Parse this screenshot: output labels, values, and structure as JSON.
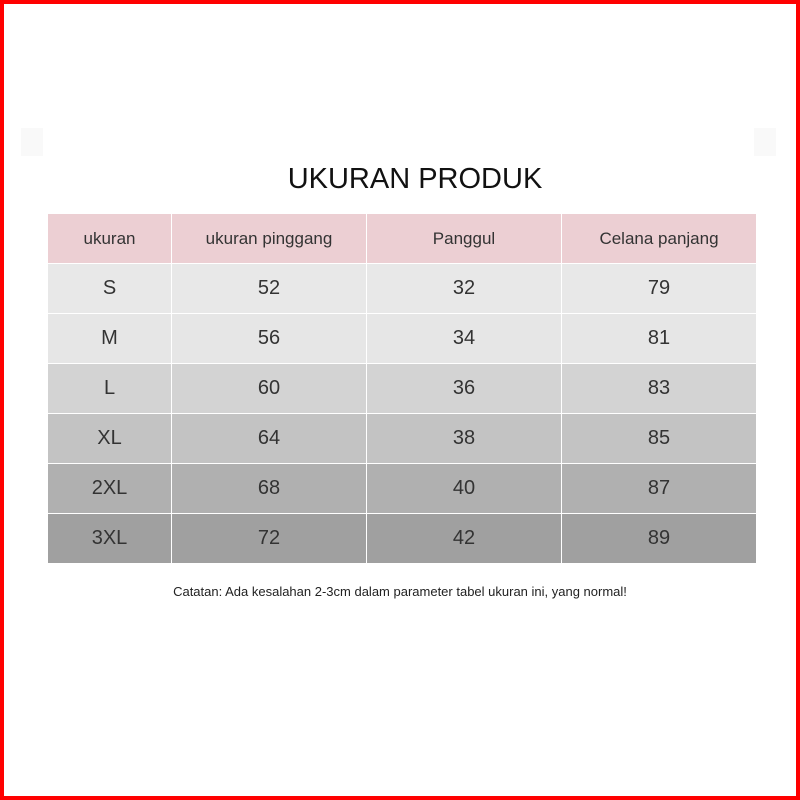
{
  "title": "UKURAN PRODUK",
  "headers": [
    "ukuran",
    "ukuran pinggang",
    "Panggul",
    "Celana panjang"
  ],
  "rows": [
    [
      "S",
      "52",
      "32",
      "79"
    ],
    [
      "M",
      "56",
      "34",
      "81"
    ],
    [
      "L",
      "60",
      "36",
      "83"
    ],
    [
      "XL",
      "64",
      "38",
      "85"
    ],
    [
      "2XL",
      "68",
      "40",
      "87"
    ],
    [
      "3XL",
      "72",
      "42",
      "89"
    ]
  ],
  "note": "Catatan: Ada kesalahan 2-3cm dalam parameter tabel ukuran ini, yang normal!",
  "colors": {
    "border": "#ff0000",
    "header": "#eccfd3",
    "rows": [
      "#e8e8e8",
      "#e6e6e6",
      "#d3d3d3",
      "#c3c3c3",
      "#b0b0b0",
      "#a0a0a0"
    ]
  }
}
